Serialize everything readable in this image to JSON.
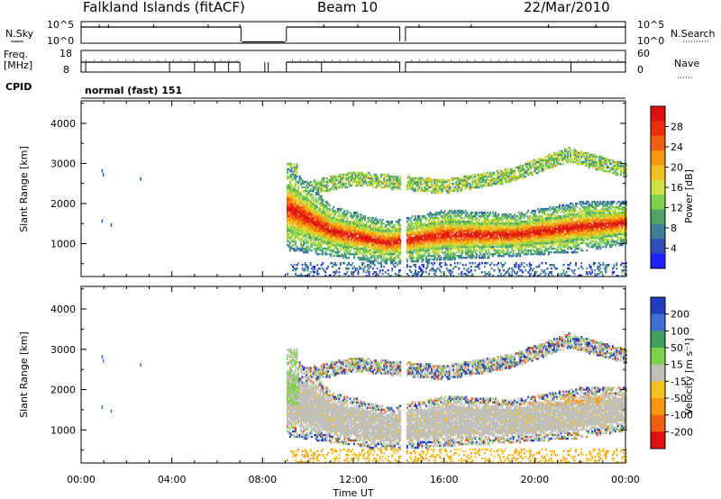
{
  "header": {
    "station": "Falkland Islands (fitACF)",
    "beam": "Beam 10",
    "date": "22/Mar/2010"
  },
  "strip_nsky": {
    "left_label": "N.Sky",
    "right_label": "N.Search",
    "left_ticks": [
      "10^5",
      "10^0"
    ],
    "right_ticks": [
      "10^5",
      "10^0"
    ]
  },
  "strip_freq": {
    "left_label_1": "Freq.",
    "left_label_2": "[MHz]",
    "right_label": "Nave",
    "left_ticks": [
      "18",
      "8"
    ],
    "right_ticks": [
      "60",
      "0"
    ]
  },
  "cpid": {
    "label": "CPID",
    "value": "normal (fast) 151"
  },
  "chart_data": [
    {
      "type": "heatmap",
      "name": "power-panel",
      "ylabel": "Slant Range [km]",
      "xlabel": "Time UT",
      "x_ticks": [
        "00:00",
        "04:00",
        "08:00",
        "12:00",
        "16:00",
        "20:00",
        "00:00"
      ],
      "x_range_hours": [
        0,
        24
      ],
      "y_ticks": [
        "1000",
        "2000",
        "3000",
        "4000"
      ],
      "ylim": [
        180,
        4560
      ],
      "colorbar": {
        "label": "Power [dB]",
        "ticks": [
          "4",
          "8",
          "12",
          "16",
          "20",
          "24",
          "28"
        ],
        "range": [
          0,
          30
        ],
        "colors": [
          "#1f1fff",
          "#2c4fb8",
          "#3d7f9a",
          "#4fa46a",
          "#7fd04a",
          "#d0e040",
          "#f0c020",
          "#f59a10",
          "#f06010",
          "#e83010",
          "#e01010"
        ]
      },
      "data_gap_hours": [
        [
          7.0,
          9.0
        ],
        [
          14.05,
          14.3
        ]
      ],
      "main_echo_band_km": [
        [
          9.0,
          1900,
          600
        ],
        [
          11.0,
          1300,
          350
        ],
        [
          13.5,
          1000,
          300
        ],
        [
          16.0,
          1200,
          350
        ],
        [
          19.0,
          1200,
          300
        ],
        [
          22.0,
          1400,
          350
        ],
        [
          24.0,
          1500,
          300
        ]
      ],
      "upper_echo_band_km": [
        [
          9.5,
          2300
        ],
        [
          12.0,
          2600
        ],
        [
          16.0,
          2400
        ],
        [
          19.0,
          2700
        ],
        [
          21.5,
          3200
        ],
        [
          24.0,
          2800
        ]
      ]
    },
    {
      "type": "heatmap",
      "name": "velocity-panel",
      "ylabel": "Slant Range [km]",
      "xlabel": "Time UT",
      "x_ticks": [
        "00:00",
        "04:00",
        "08:00",
        "12:00",
        "16:00",
        "20:00",
        "00:00"
      ],
      "x_range_hours": [
        0,
        24
      ],
      "y_ticks": [
        "1000",
        "2000",
        "3000",
        "4000"
      ],
      "ylim": [
        180,
        4560
      ],
      "colorbar": {
        "label": "Velocity [m s⁻¹]",
        "ticks": [
          "200",
          "100",
          "50",
          "15",
          "-15",
          "-50",
          "-100",
          "-200"
        ],
        "colors": [
          "#1f3fbf",
          "#3f6fd0",
          "#3f9f60",
          "#7fd04a",
          "#c0c0b8",
          "#f5c020",
          "#f59a10",
          "#f06010",
          "#e01010"
        ]
      },
      "data_gap_hours": [
        [
          7.0,
          9.0
        ],
        [
          14.05,
          14.3
        ]
      ]
    }
  ]
}
